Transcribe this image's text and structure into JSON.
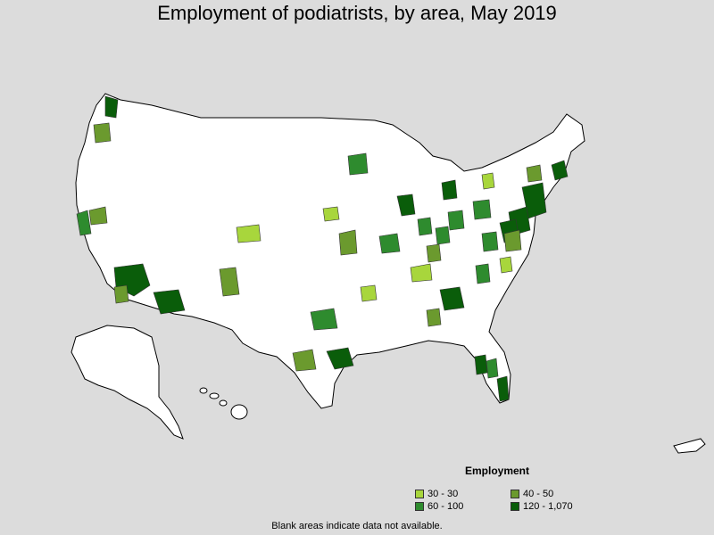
{
  "title": "Employment of podiatrists, by area, May 2019",
  "legend": {
    "title": "Employment",
    "items": [
      {
        "label": "30 - 30",
        "color": "#a8d63c"
      },
      {
        "label": "40 - 50",
        "color": "#6b9a2e"
      },
      {
        "label": "60 - 100",
        "color": "#2e8b2e"
      },
      {
        "label": "120 - 1,070",
        "color": "#0a5d0a"
      }
    ]
  },
  "footnote": "Blank areas indicate data not available.",
  "colors": {
    "background": "#dcdcdc",
    "land": "#ffffff",
    "border": "#000000"
  }
}
